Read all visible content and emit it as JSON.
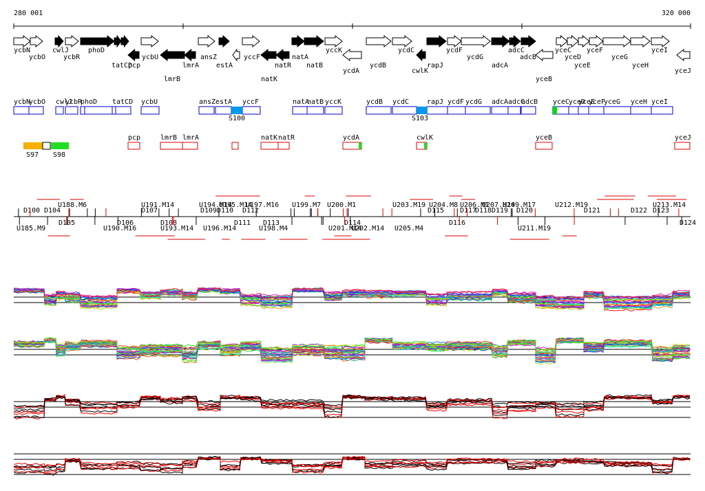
{
  "ruler": {
    "start": "280 001",
    "end": "320 000"
  },
  "genes": [
    "ycbN",
    "ycbO",
    "cwlJ",
    "ycbR",
    "phoD",
    "tatCD",
    "pcp",
    "ycbU",
    "lmrB",
    "lmrA",
    "ansZ",
    "estA",
    "yccF",
    "natK",
    "natR",
    "natA",
    "natB",
    "yccK",
    "ycdA",
    "ycdB",
    "ycdC",
    "cwlK",
    "rapJ",
    "ycdF",
    "ycdG",
    "adcA",
    "adcC",
    "adcB",
    "yceB",
    "yceC",
    "yceD",
    "yceE",
    "yceF",
    "yceG",
    "yceH",
    "yceI",
    "yceJ"
  ],
  "operons": {
    "labels": [
      "ycbN",
      "ycbO",
      "cwlJ",
      "ycbR",
      "phoD",
      "tatCD",
      "ycbU",
      "ansZ",
      "estA",
      "yccF",
      "natA",
      "natB",
      "yccK",
      "ycdB",
      "ycdC",
      "rapJ",
      "ycdF",
      "ycdG",
      "adcA",
      "adcC",
      "adcB",
      "yceC",
      "yceD",
      "yceE",
      "yceF",
      "yceG",
      "yceH",
      "yceI"
    ],
    "sigma": [
      "S100",
      "S103"
    ]
  },
  "promoters": {
    "sigma": [
      "S97",
      "S98"
    ],
    "labels": [
      "pcp",
      "lmrB",
      "lmrA",
      "natK",
      "natR",
      "ycdA",
      "cwlK",
      "yceB",
      "yceJ"
    ]
  },
  "units": [
    "D100",
    "D104",
    "U188.M6",
    "U191.M14",
    "D107",
    "U194.M14",
    "U195.M14",
    "D109",
    "D110",
    "U197.M16",
    "D112",
    "U199.M7",
    "U200.M1",
    "U203.M19",
    "D115",
    "U204.M8",
    "U206.M1",
    "D117",
    "D118",
    "U207.M14",
    "U209.M17",
    "D119",
    "D120",
    "U212.M19",
    "D121",
    "D122",
    "U213.M14",
    "D123",
    "D124",
    "U185.M9",
    "D105",
    "D106",
    "U190.M16",
    "D108",
    "U193.M14",
    "U196.M14",
    "D111",
    "D113",
    "U198.M4",
    "U201.M14",
    "D114",
    "U202.M14",
    "U205.M4",
    "D116",
    "U211.M19"
  ]
}
